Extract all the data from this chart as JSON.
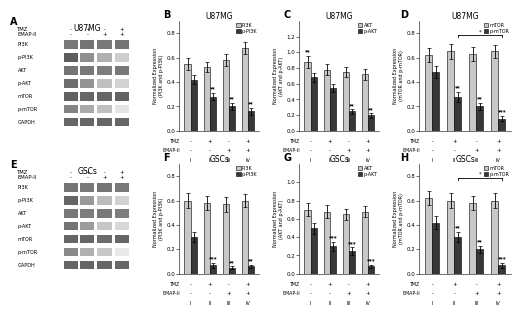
{
  "panels_bar": {
    "B": {
      "title": "U87MG",
      "ylabel": "Normalized Expression\n(PI3K and p-PI3K)",
      "ylim": [
        0,
        0.9
      ],
      "yticks": [
        0.0,
        0.2,
        0.4,
        0.6,
        0.8
      ],
      "legend": [
        "PI3K",
        "p-PI3K"
      ],
      "bar_colors": [
        "#c8c8c8",
        "#383838"
      ],
      "values_light": [
        0.55,
        0.52,
        0.58,
        0.68
      ],
      "values_dark": [
        0.42,
        0.28,
        0.2,
        0.16
      ],
      "errors_light": [
        0.05,
        0.04,
        0.05,
        0.05
      ],
      "errors_dark": [
        0.04,
        0.03,
        0.03,
        0.03
      ],
      "sig_light": [
        "",
        "",
        "",
        ""
      ],
      "sig_dark": [
        "",
        "**",
        "**",
        "**"
      ],
      "tmz_signs": [
        "-",
        "+",
        "-",
        "+"
      ],
      "emap_signs": [
        "-",
        "-",
        "+",
        "+"
      ],
      "bracket": false,
      "bracket_cols": [],
      "bracket_sig": ""
    },
    "C": {
      "title": "U87MG",
      "ylabel": "Normalized Expression\n(AKT and p-AKT)",
      "ylim": [
        0,
        1.4
      ],
      "yticks": [
        0.0,
        0.2,
        0.4,
        0.6,
        0.8,
        1.0,
        1.2
      ],
      "legend": [
        "AKT",
        "p-AKT"
      ],
      "bar_colors": [
        "#c8c8c8",
        "#383838"
      ],
      "values_light": [
        0.88,
        0.78,
        0.75,
        0.72
      ],
      "values_dark": [
        0.68,
        0.55,
        0.25,
        0.2
      ],
      "errors_light": [
        0.08,
        0.07,
        0.07,
        0.07
      ],
      "errors_dark": [
        0.06,
        0.05,
        0.03,
        0.03
      ],
      "sig_light": [
        "**",
        "",
        "",
        ""
      ],
      "sig_dark": [
        "",
        "",
        "**",
        "**"
      ],
      "tmz_signs": [
        "-",
        "+",
        "-",
        "+"
      ],
      "emap_signs": [
        "-",
        "-",
        "+",
        "+"
      ],
      "bracket": false,
      "bracket_cols": [],
      "bracket_sig": ""
    },
    "D": {
      "title": "U87MG",
      "ylabel": "Normalized Expression\n(mTOR and p-mTOR)",
      "ylim": [
        0,
        0.9
      ],
      "yticks": [
        0.0,
        0.2,
        0.4,
        0.6,
        0.8
      ],
      "legend": [
        "mTOR",
        "p-mTOR"
      ],
      "bar_colors": [
        "#c8c8c8",
        "#383838"
      ],
      "values_light": [
        0.62,
        0.65,
        0.63,
        0.65
      ],
      "values_dark": [
        0.48,
        0.28,
        0.2,
        0.1
      ],
      "errors_light": [
        0.06,
        0.06,
        0.06,
        0.05
      ],
      "errors_dark": [
        0.05,
        0.04,
        0.03,
        0.02
      ],
      "sig_light": [
        "",
        "",
        "",
        ""
      ],
      "sig_dark": [
        "",
        "**",
        "**",
        "***"
      ],
      "tmz_signs": [
        "-",
        "+",
        "-",
        "+"
      ],
      "emap_signs": [
        "-",
        "-",
        "+",
        "+"
      ],
      "bracket": true,
      "bracket_cols": [
        1,
        3
      ],
      "bracket_sig": "*"
    },
    "F": {
      "title": "GSCs",
      "ylabel": "Normalized Expression\n(PI3K and p-PI3K)",
      "ylim": [
        0,
        0.9
      ],
      "yticks": [
        0.0,
        0.2,
        0.4,
        0.6,
        0.8
      ],
      "legend": [
        "PI3K",
        "p-PI3K"
      ],
      "bar_colors": [
        "#c8c8c8",
        "#383838"
      ],
      "values_light": [
        0.6,
        0.58,
        0.57,
        0.6
      ],
      "values_dark": [
        0.3,
        0.07,
        0.05,
        0.06
      ],
      "errors_light": [
        0.06,
        0.06,
        0.06,
        0.05
      ],
      "errors_dark": [
        0.04,
        0.02,
        0.01,
        0.01
      ],
      "sig_light": [
        "",
        "",
        "",
        ""
      ],
      "sig_dark": [
        "",
        "***",
        "**",
        "**"
      ],
      "tmz_signs": [
        "-",
        "+",
        "-",
        "+"
      ],
      "emap_signs": [
        "-",
        "-",
        "+",
        "+"
      ],
      "bracket": false,
      "bracket_cols": [],
      "bracket_sig": ""
    },
    "G": {
      "title": "GSCs",
      "ylabel": "Normalized Expression\n(AKT and p-AKT)",
      "ylim": [
        0,
        1.2
      ],
      "yticks": [
        0.0,
        0.2,
        0.4,
        0.6,
        0.8,
        1.0
      ],
      "legend": [
        "AKT",
        "p-AKT"
      ],
      "bar_colors": [
        "#c8c8c8",
        "#383838"
      ],
      "values_light": [
        0.7,
        0.68,
        0.65,
        0.68
      ],
      "values_dark": [
        0.5,
        0.3,
        0.25,
        0.08
      ],
      "errors_light": [
        0.07,
        0.07,
        0.06,
        0.06
      ],
      "errors_dark": [
        0.06,
        0.05,
        0.04,
        0.02
      ],
      "sig_light": [
        "",
        "",
        "",
        ""
      ],
      "sig_dark": [
        "",
        "***",
        "***",
        "***"
      ],
      "tmz_signs": [
        "-",
        "+",
        "-",
        "+"
      ],
      "emap_signs": [
        "-",
        "-",
        "+",
        "+"
      ],
      "bracket": false,
      "bracket_cols": [],
      "bracket_sig": ""
    },
    "H": {
      "title": "GSCs",
      "ylabel": "Normalized Expression\n(mTOR and p-mTOR)",
      "ylim": [
        0,
        0.9
      ],
      "yticks": [
        0.0,
        0.2,
        0.4,
        0.6,
        0.8
      ],
      "legend": [
        "mTOR",
        "p-mTOR"
      ],
      "bar_colors": [
        "#c8c8c8",
        "#383838"
      ],
      "values_light": [
        0.62,
        0.6,
        0.58,
        0.6
      ],
      "values_dark": [
        0.42,
        0.3,
        0.2,
        0.07
      ],
      "errors_light": [
        0.06,
        0.06,
        0.06,
        0.06
      ],
      "errors_dark": [
        0.05,
        0.04,
        0.03,
        0.02
      ],
      "sig_light": [
        "",
        "",
        "",
        ""
      ],
      "sig_dark": [
        "",
        "**",
        "**",
        "***"
      ],
      "tmz_signs": [
        "-",
        "+",
        "-",
        "+"
      ],
      "emap_signs": [
        "-",
        "-",
        "+",
        "+"
      ],
      "bracket": true,
      "bracket_cols": [
        1,
        3
      ],
      "bracket_sig": "*"
    }
  },
  "western": {
    "A": {
      "title": "U87MG",
      "panel_label": "A",
      "row_labels": [
        "PI3K",
        "p-PI3K",
        "AKT",
        "p-AKT",
        "mTOR",
        "p-mTOR",
        "GAPDH"
      ],
      "tmz_signs": [
        "-",
        "+",
        "-",
        "+"
      ],
      "emap_signs": [
        "-",
        "-",
        "+",
        "+"
      ],
      "band_intensities": {
        "PI3K": [
          0.6,
          0.62,
          0.6,
          0.62
        ],
        "p-PI3K": [
          0.72,
          0.5,
          0.35,
          0.22
        ],
        "AKT": [
          0.62,
          0.6,
          0.58,
          0.6
        ],
        "p-AKT": [
          0.65,
          0.48,
          0.28,
          0.2
        ],
        "mTOR": [
          0.7,
          0.68,
          0.68,
          0.7
        ],
        "p-mTOR": [
          0.55,
          0.38,
          0.28,
          0.12
        ],
        "GAPDH": [
          0.68,
          0.68,
          0.68,
          0.68
        ]
      }
    },
    "E": {
      "title": "GSCs",
      "panel_label": "E",
      "row_labels": [
        "PI3K",
        "p-PI3K",
        "AKT",
        "p-AKT",
        "mTOR",
        "p-mTOR",
        "GAPDH"
      ],
      "tmz_signs": [
        "-",
        "+",
        "-",
        "+"
      ],
      "emap_signs": [
        "-",
        "-",
        "+",
        "+"
      ],
      "band_intensities": {
        "PI3K": [
          0.62,
          0.6,
          0.62,
          0.6
        ],
        "p-PI3K": [
          0.68,
          0.45,
          0.3,
          0.2
        ],
        "AKT": [
          0.6,
          0.58,
          0.6,
          0.58
        ],
        "p-AKT": [
          0.62,
          0.44,
          0.25,
          0.18
        ],
        "mTOR": [
          0.68,
          0.68,
          0.66,
          0.68
        ],
        "p-mTOR": [
          0.52,
          0.35,
          0.25,
          0.1
        ],
        "GAPDH": [
          0.68,
          0.68,
          0.68,
          0.68
        ]
      }
    }
  },
  "bg_color": "#ffffff",
  "bar_width": 0.32,
  "capsize": 1.5,
  "elinewidth": 0.6,
  "title_fontsize": 5.5,
  "tick_fontsize": 4.0,
  "ylabel_fontsize": 3.5,
  "legend_fontsize": 3.5,
  "sig_fontsize": 4.0,
  "panel_label_fontsize": 7
}
